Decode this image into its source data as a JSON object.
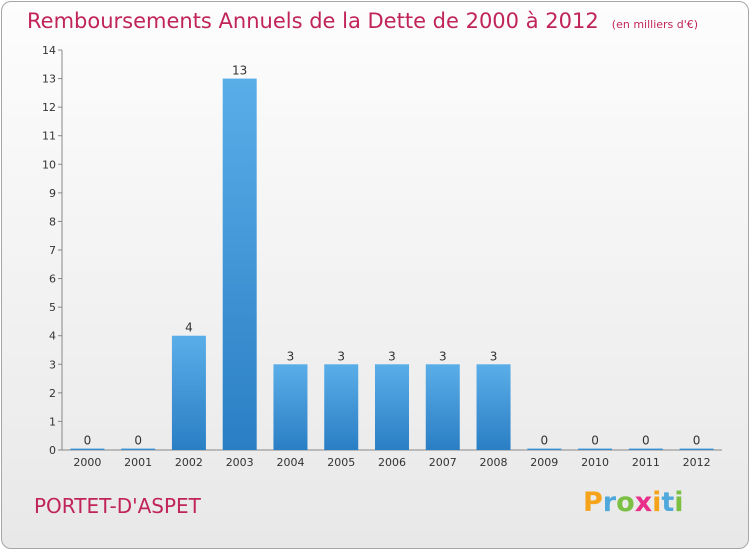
{
  "title": "Remboursements Annuels de la Dette de 2000 à 2012",
  "subtitle": "(en milliers d'€)",
  "commune": "PORTET-D'ASPET",
  "logo": {
    "letters": [
      "P",
      "r",
      "o",
      "x",
      "i",
      "t",
      "i"
    ],
    "colors": [
      "#f5a31a",
      "#4fa8dc",
      "#7cc043",
      "#e8308a",
      "#f5a31a",
      "#4fa8dc",
      "#7cc043"
    ]
  },
  "colors": {
    "bar_light": "#5aaee8",
    "bar_dark": "#2a7ec4",
    "title": "#c0245a"
  },
  "chart_data": {
    "type": "bar",
    "categories": [
      "2000",
      "2001",
      "2002",
      "2003",
      "2004",
      "2005",
      "2006",
      "2007",
      "2008",
      "2009",
      "2010",
      "2011",
      "2012"
    ],
    "values": [
      0,
      0,
      4,
      13,
      3,
      3,
      3,
      3,
      3,
      0,
      0,
      0,
      0
    ],
    "y_ticks": [
      "0",
      "1",
      "2",
      "3",
      "4",
      "5",
      "6",
      "7",
      "8",
      "9",
      "10",
      "11",
      "12",
      "13",
      "14"
    ],
    "ylim": [
      0,
      14
    ],
    "grid": false,
    "xlabel": "",
    "ylabel": ""
  }
}
